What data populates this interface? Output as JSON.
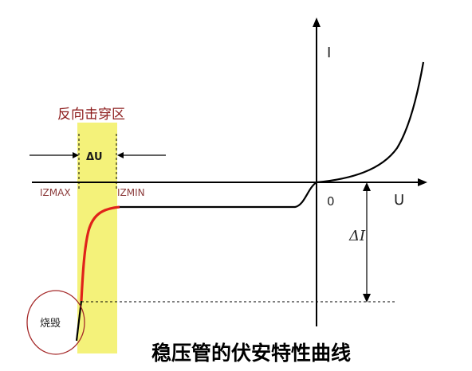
{
  "title": "稳压管的伏安特性曲线",
  "region_label": "反向击穿区",
  "axis": {
    "x_label": "U",
    "y_label": "I",
    "origin_label": "0"
  },
  "labels": {
    "delta_u": "ΔU",
    "delta_i": "ΔI",
    "izmax": "IZMAX",
    "izmin": "IZMIN",
    "burnout": "烧毁"
  },
  "colors": {
    "region_fill": "#f4f27a",
    "region_label": "#8b1a1a",
    "red_curve": "#e0231a",
    "circle": "#a52a2a",
    "iz_labels": "#8b3a3a",
    "lines": "#000000"
  }
}
